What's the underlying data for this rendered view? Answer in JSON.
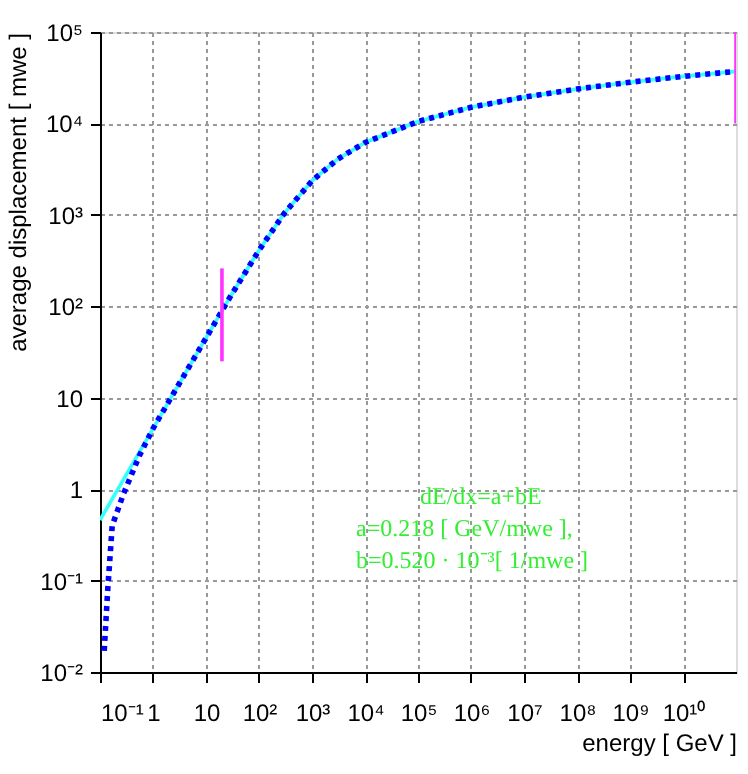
{
  "chart_data": {
    "type": "line",
    "xlabel": "energy [ GeV ]",
    "ylabel": "average displacement [ mwe ]",
    "log": "xy",
    "grid": true,
    "xlim": [
      0.1,
      100000000000.0
    ],
    "ylim": [
      0.01,
      100000
    ],
    "xticks": [
      {
        "value": 0.1,
        "label": "10⁻¹"
      },
      1,
      10,
      {
        "value": 100,
        "label": "10²"
      },
      {
        "value": 1000,
        "label": "10³"
      },
      {
        "value": 10000,
        "label": "10⁴"
      },
      {
        "value": 100000,
        "label": "10⁵"
      },
      {
        "value": 1000000,
        "label": "10⁶"
      },
      {
        "value": 10000000,
        "label": "10⁷"
      },
      {
        "value": 100000000,
        "label": "10⁸"
      },
      {
        "value": 1000000000,
        "label": "10⁹"
      },
      {
        "value": 10000000000,
        "label": "10¹⁰"
      }
    ],
    "yticks": [
      {
        "value": 0.01,
        "label": "10⁻²"
      },
      {
        "value": 0.1,
        "label": "10⁻¹"
      },
      1,
      10,
      {
        "value": 100,
        "label": "10²"
      },
      {
        "value": 1000,
        "label": "10³"
      },
      {
        "value": 10000,
        "label": "10⁴"
      },
      {
        "value": 100000,
        "label": "10⁵"
      }
    ],
    "series": [
      {
        "color": "#33ffff",
        "line_style": "solid",
        "x": [
          0.1,
          0.3,
          1,
          3,
          10,
          30,
          100,
          300,
          1000,
          3000,
          10000,
          100000,
          1000000,
          10000000,
          100000000,
          1000000000,
          10000000000,
          100000000000
        ],
        "values": [
          0.46,
          1.38,
          4.6,
          13.7,
          45,
          133,
          410,
          1040,
          2350,
          4040,
          6180,
          10500,
          15000,
          19400,
          23800,
          28200,
          32700,
          37100
        ]
      },
      {
        "color": "#0000ff",
        "line_style": "dotted",
        "x": [
          0.12,
          0.14,
          0.17,
          0.28,
          0.55,
          1,
          3,
          10,
          30,
          100,
          300,
          1000,
          3000,
          10000,
          100000,
          1000000,
          10000000,
          100000000,
          1000000000,
          10000000000,
          100000000000
        ],
        "values": [
          0.017,
          0.08,
          0.4,
          0.9,
          2.3,
          4.6,
          13.7,
          45,
          133,
          410,
          1040,
          2350,
          4040,
          6180,
          10500,
          15000,
          19400,
          23800,
          28200,
          32700,
          37100
        ]
      },
      {
        "color": "#ff33ff",
        "line_style": "solid",
        "x": [
          20,
          20
        ],
        "values": [
          25,
          260
        ]
      },
      {
        "color": "#ff33ff",
        "line_style": "solid",
        "x": [
          100000000000,
          100000000000
        ],
        "values": [
          10000,
          100000
        ]
      }
    ],
    "annotations": [
      "dE/dx=a+bE",
      "a=0.218 [ GeV/mwe ],",
      "b=0.520 · 10⁻³[ 1/mwe ]"
    ]
  }
}
